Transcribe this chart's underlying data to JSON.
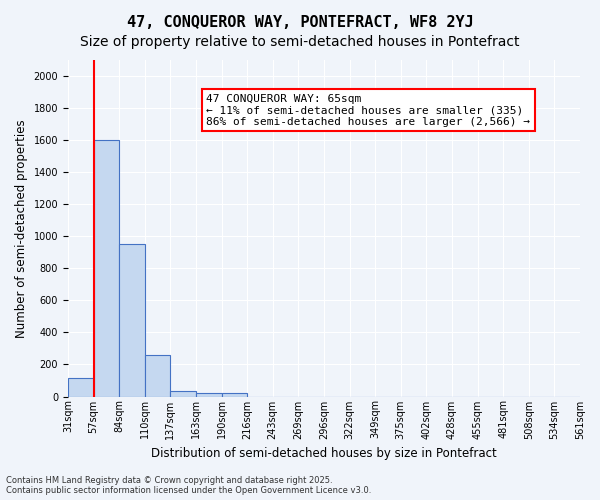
{
  "title": "47, CONQUEROR WAY, PONTEFRACT, WF8 2YJ",
  "subtitle": "Size of property relative to semi-detached houses in Pontefract",
  "xlabel": "Distribution of semi-detached houses by size in Pontefract",
  "ylabel": "Number of semi-detached properties",
  "bar_values": [
    115,
    1600,
    950,
    260,
    35,
    25,
    20,
    0,
    0,
    0,
    0,
    0,
    0,
    0,
    0,
    0,
    0,
    0,
    0,
    0
  ],
  "bin_labels": [
    "31sqm",
    "57sqm",
    "84sqm",
    "110sqm",
    "137sqm",
    "163sqm",
    "190sqm",
    "216sqm",
    "243sqm",
    "269sqm",
    "296sqm",
    "322sqm",
    "349sqm",
    "375sqm",
    "402sqm",
    "428sqm",
    "455sqm",
    "481sqm",
    "508sqm",
    "534sqm",
    "561sqm"
  ],
  "bar_color": "#c5d8f0",
  "bar_edge_color": "#4472c4",
  "red_line_x": 1,
  "annotation_box_text": "47 CONQUEROR WAY: 65sqm\n← 11% of semi-detached houses are smaller (335)\n86% of semi-detached houses are larger (2,566) →",
  "ylim": [
    0,
    2100
  ],
  "yticks": [
    0,
    200,
    400,
    600,
    800,
    1000,
    1200,
    1400,
    1600,
    1800,
    2000
  ],
  "footer_line1": "Contains HM Land Registry data © Crown copyright and database right 2025.",
  "footer_line2": "Contains public sector information licensed under the Open Government Licence v3.0.",
  "bg_color": "#f0f4fa",
  "grid_color": "#ffffff",
  "title_fontsize": 11,
  "subtitle_fontsize": 10,
  "label_fontsize": 8.5,
  "tick_fontsize": 7,
  "annotation_fontsize": 8
}
